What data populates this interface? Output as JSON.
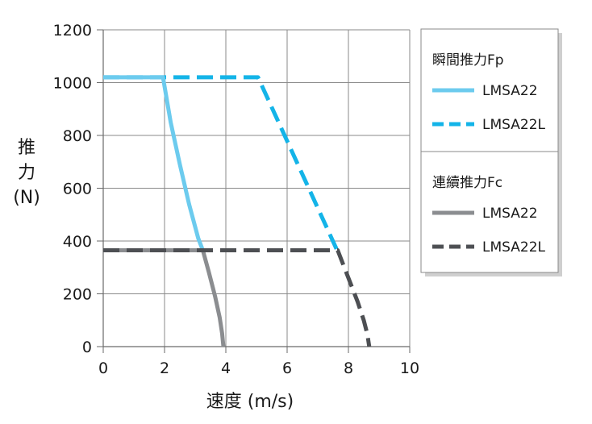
{
  "chart_data": {
    "type": "line",
    "xlabel": "速度 (m/s)",
    "ylabel_chars": [
      "推",
      "力",
      "(N)"
    ],
    "xlim": [
      0,
      10
    ],
    "ylim": [
      0,
      1200
    ],
    "x_ticks": [
      0,
      2,
      4,
      6,
      8,
      10
    ],
    "y_ticks": [
      0,
      200,
      400,
      600,
      800,
      1000,
      1200
    ],
    "grid": true,
    "legend_position": "right",
    "legend_groups": [
      {
        "title": "瞬間推力Fp",
        "entries": [
          0,
          1
        ]
      },
      {
        "title": "連續推力Fc",
        "entries": [
          2,
          3
        ]
      }
    ],
    "series": [
      {
        "name": "LMSA22",
        "color": "#6ccbee",
        "dash": false,
        "x": [
          0,
          1.95,
          2.2,
          2.5,
          2.8,
          3.1,
          3.25
        ],
        "y": [
          1020,
          1020,
          850,
          690,
          540,
          410,
          365
        ]
      },
      {
        "name": "LMSA22L",
        "color": "#14b4e8",
        "dash": true,
        "x": [
          0,
          5.05,
          7.65
        ],
        "y": [
          1020,
          1020,
          360
        ]
      },
      {
        "name": "LMSA22",
        "color": "#8b8d90",
        "dash": false,
        "x": [
          0,
          3.25,
          3.45,
          3.65,
          3.8,
          3.88,
          3.92
        ],
        "y": [
          365,
          365,
          280,
          190,
          110,
          50,
          0
        ]
      },
      {
        "name": "LMSA22L",
        "color": "#4d4f53",
        "dash": true,
        "x": [
          0,
          7.65,
          8.0,
          8.3,
          8.5,
          8.62,
          8.68
        ],
        "y": [
          365,
          365,
          260,
          170,
          100,
          45,
          0
        ]
      }
    ]
  }
}
